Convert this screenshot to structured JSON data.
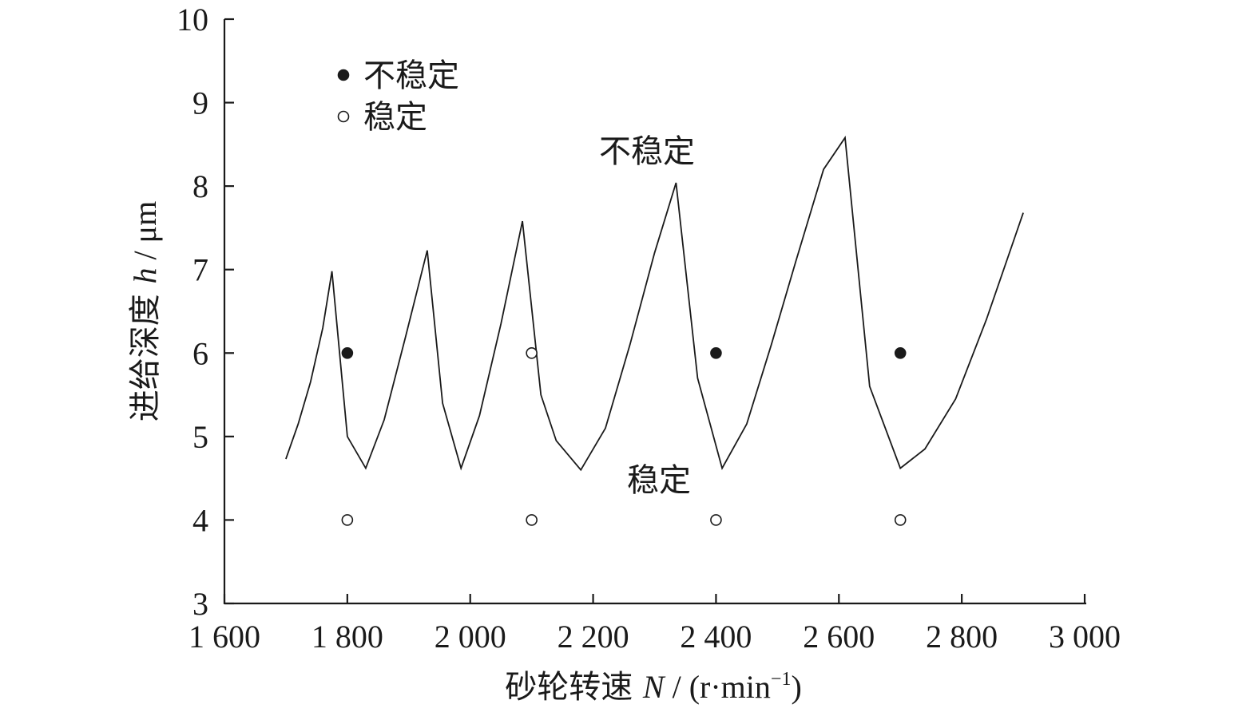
{
  "chart_data": {
    "type": "scatter",
    "xlabel": {
      "prefix": "砂轮转速 ",
      "var": "N",
      "unit_open": " / (r·min",
      "sup": "−1",
      "unit_close": ")"
    },
    "ylabel": {
      "prefix": "进给深度 ",
      "var": "h",
      "unit": " / μm"
    },
    "xlim": [
      1600,
      3000
    ],
    "ylim": [
      3,
      10
    ],
    "x_ticks": [
      1600,
      1800,
      2000,
      2200,
      2400,
      2600,
      2800,
      3000
    ],
    "x_tick_labels": [
      "1 600",
      "1 800",
      "2 000",
      "2 200",
      "2 400",
      "2 600",
      "2 800",
      "3 000"
    ],
    "y_ticks": [
      3,
      4,
      5,
      6,
      7,
      8,
      9,
      10
    ],
    "y_tick_labels": [
      "3",
      "4",
      "5",
      "6",
      "7",
      "8",
      "9",
      "10"
    ],
    "grid": false,
    "legend": {
      "placement": "top-left",
      "entries": [
        {
          "label": "不稳定",
          "marker": "filled-circle"
        },
        {
          "label": "稳定",
          "marker": "open-circle"
        }
      ]
    },
    "annotations": {
      "unstable": "不稳定",
      "stable": "稳定"
    },
    "stability_boundary": {
      "x": [
        1700,
        1720,
        1740,
        1760,
        1775,
        1800,
        1830,
        1860,
        1895,
        1930,
        1955,
        1985,
        2015,
        2050,
        2085,
        2115,
        2140,
        2180,
        2220,
        2260,
        2300,
        2335,
        2370,
        2410,
        2450,
        2490,
        2530,
        2575,
        2610,
        2650,
        2700,
        2740,
        2790,
        2840,
        2900
      ],
      "y": [
        4.73,
        5.15,
        5.65,
        6.3,
        6.98,
        5.0,
        4.62,
        5.2,
        6.2,
        7.23,
        5.4,
        4.62,
        5.25,
        6.35,
        7.58,
        5.5,
        4.95,
        4.6,
        5.1,
        6.1,
        7.2,
        8.04,
        5.7,
        4.62,
        5.15,
        6.1,
        7.1,
        8.2,
        8.58,
        5.6,
        4.62,
        4.85,
        5.45,
        6.4,
        7.68
      ]
    },
    "series": [
      {
        "name": "不稳定",
        "marker": "filled-circle",
        "points": [
          {
            "x": 1800,
            "y": 6
          },
          {
            "x": 2400,
            "y": 6
          },
          {
            "x": 2700,
            "y": 6
          }
        ]
      },
      {
        "name": "稳定",
        "marker": "open-circle",
        "points": [
          {
            "x": 2100,
            "y": 6
          },
          {
            "x": 1800,
            "y": 4
          },
          {
            "x": 2100,
            "y": 4
          },
          {
            "x": 2400,
            "y": 4
          },
          {
            "x": 2700,
            "y": 4
          }
        ]
      }
    ]
  }
}
